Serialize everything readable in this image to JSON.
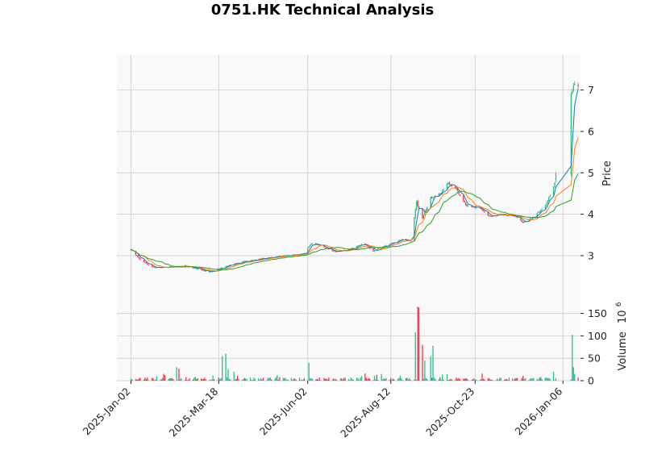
{
  "colors": {
    "up": "#2ebd85",
    "down": "#f23645",
    "panel_background": "#f9f9f9",
    "grid": "#d3d3d3",
    "ma_short": "#1f77b4",
    "ma_mid": "#ff7f0e",
    "ma_long": "#2ca02c"
  },
  "chart_data": {
    "type": "candlestick",
    "title": "0751.HK Technical Analysis",
    "price_panel": {
      "ylabel": "Price",
      "ylim": [
        2.2,
        7.85
      ],
      "yticks": [
        3,
        4,
        5,
        6,
        7
      ],
      "moving_averages": [
        "MA short",
        "MA mid",
        "MA long"
      ]
    },
    "volume_panel": {
      "ylabel": "Volume",
      "ylabel_exponent": "6",
      "ylim": [
        0,
        205
      ],
      "yticks": [
        0,
        50,
        100,
        150
      ]
    },
    "xlim": [
      "2024-12-21",
      "2026-01-21"
    ],
    "xticks": [
      "2025-Jan-02",
      "2025-Mar-18",
      "2025-Jun-02",
      "2025-Aug-12",
      "2025-Oct-23",
      "2026-Jan-06"
    ],
    "tick_dates": [
      "2025-01-02",
      "2025-03-18",
      "2025-06-02",
      "2025-08-12",
      "2025-10-23",
      "2026-01-06"
    ],
    "price_anchors": [
      [
        "2025-01-02",
        3.15
      ],
      [
        "2025-01-10",
        2.9
      ],
      [
        "2025-01-20",
        2.72
      ],
      [
        "2025-02-03",
        2.72
      ],
      [
        "2025-02-17",
        2.75
      ],
      [
        "2025-02-28",
        2.68
      ],
      [
        "2025-03-10",
        2.6
      ],
      [
        "2025-03-18",
        2.68
      ],
      [
        "2025-03-28",
        2.78
      ],
      [
        "2025-04-08",
        2.85
      ],
      [
        "2025-04-28",
        2.95
      ],
      [
        "2025-05-15",
        3.0
      ],
      [
        "2025-05-30",
        3.05
      ],
      [
        "2025-06-05",
        3.3
      ],
      [
        "2025-06-12",
        3.25
      ],
      [
        "2025-06-25",
        3.1
      ],
      [
        "2025-07-08",
        3.15
      ],
      [
        "2025-07-20",
        3.3
      ],
      [
        "2025-07-28",
        3.1
      ],
      [
        "2025-08-08",
        3.25
      ],
      [
        "2025-08-22",
        3.4
      ],
      [
        "2025-08-29",
        3.35
      ],
      [
        "2025-09-03",
        4.3
      ],
      [
        "2025-09-08",
        3.9
      ],
      [
        "2025-09-15",
        4.4
      ],
      [
        "2025-09-23",
        4.5
      ],
      [
        "2025-09-30",
        4.75
      ],
      [
        "2025-10-07",
        4.6
      ],
      [
        "2025-10-16",
        4.2
      ],
      [
        "2025-10-27",
        4.15
      ],
      [
        "2025-11-04",
        3.95
      ],
      [
        "2025-11-14",
        4.0
      ],
      [
        "2025-11-26",
        3.95
      ],
      [
        "2025-12-03",
        3.8
      ],
      [
        "2025-12-12",
        3.95
      ],
      [
        "2025-12-22",
        4.2
      ],
      [
        "2025-12-30",
        4.75
      ],
      [
        "2026-01-01",
        5.2
      ],
      [
        "2026-01-15",
        7.15
      ],
      [
        "2026-01-19",
        7.1
      ]
    ],
    "volume_spikes_millions": [
      [
        "2025-02-10",
        30
      ],
      [
        "2025-02-12",
        27
      ],
      [
        "2025-03-21",
        55
      ],
      [
        "2025-03-24",
        60
      ],
      [
        "2025-03-26",
        25
      ],
      [
        "2025-03-31",
        20
      ],
      [
        "2025-06-03",
        40
      ],
      [
        "2025-09-02",
        108
      ],
      [
        "2025-09-04",
        165
      ],
      [
        "2025-09-05",
        163
      ],
      [
        "2025-09-08",
        80
      ],
      [
        "2025-09-10",
        45
      ],
      [
        "2025-09-15",
        55
      ],
      [
        "2025-09-17",
        78
      ],
      [
        "2025-12-29",
        20
      ],
      [
        "2026-01-14",
        102
      ],
      [
        "2026-01-15",
        30
      ],
      [
        "2026-01-16",
        15
      ]
    ],
    "grid": true,
    "style": "candles with volume bars; green up, red down"
  }
}
